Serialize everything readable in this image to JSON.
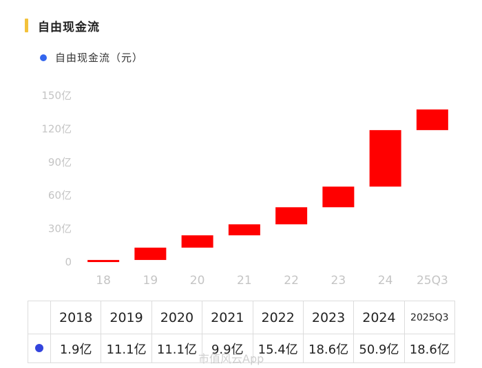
{
  "header": {
    "title": "自由现金流"
  },
  "legend": {
    "label": "自由现金流（元）",
    "color": "#3366ee"
  },
  "chart_data": {
    "type": "bar",
    "subtype": "waterfall",
    "categories": [
      "18",
      "19",
      "20",
      "21",
      "22",
      "23",
      "24",
      "25Q3"
    ],
    "values": [
      1.9,
      11.1,
      11.1,
      9.9,
      15.4,
      18.6,
      50.9,
      18.6
    ],
    "series": [
      {
        "name": "自由现金流（元）",
        "values": [
          1.9,
          11.1,
          11.1,
          9.9,
          15.4,
          18.6,
          50.9,
          18.6
        ]
      }
    ],
    "ylim": [
      0,
      150
    ],
    "yticks": [
      0,
      30,
      60,
      90,
      120,
      150
    ],
    "ytick_labels": [
      "0",
      "30亿",
      "60亿",
      "90亿",
      "120亿",
      "150亿"
    ],
    "bar_color": "#ff0000",
    "grid": false
  },
  "table": {
    "headers": [
      "2018",
      "2019",
      "2020",
      "2021",
      "2022",
      "2023",
      "2024",
      "2025Q3"
    ],
    "values": [
      "1.9亿",
      "11.1亿",
      "11.1亿",
      "9.9亿",
      "15.4亿",
      "18.6亿",
      "50.9亿",
      "18.6亿"
    ],
    "dot_color": "#3344dd"
  },
  "watermark": {
    "text": "市值风云App"
  }
}
